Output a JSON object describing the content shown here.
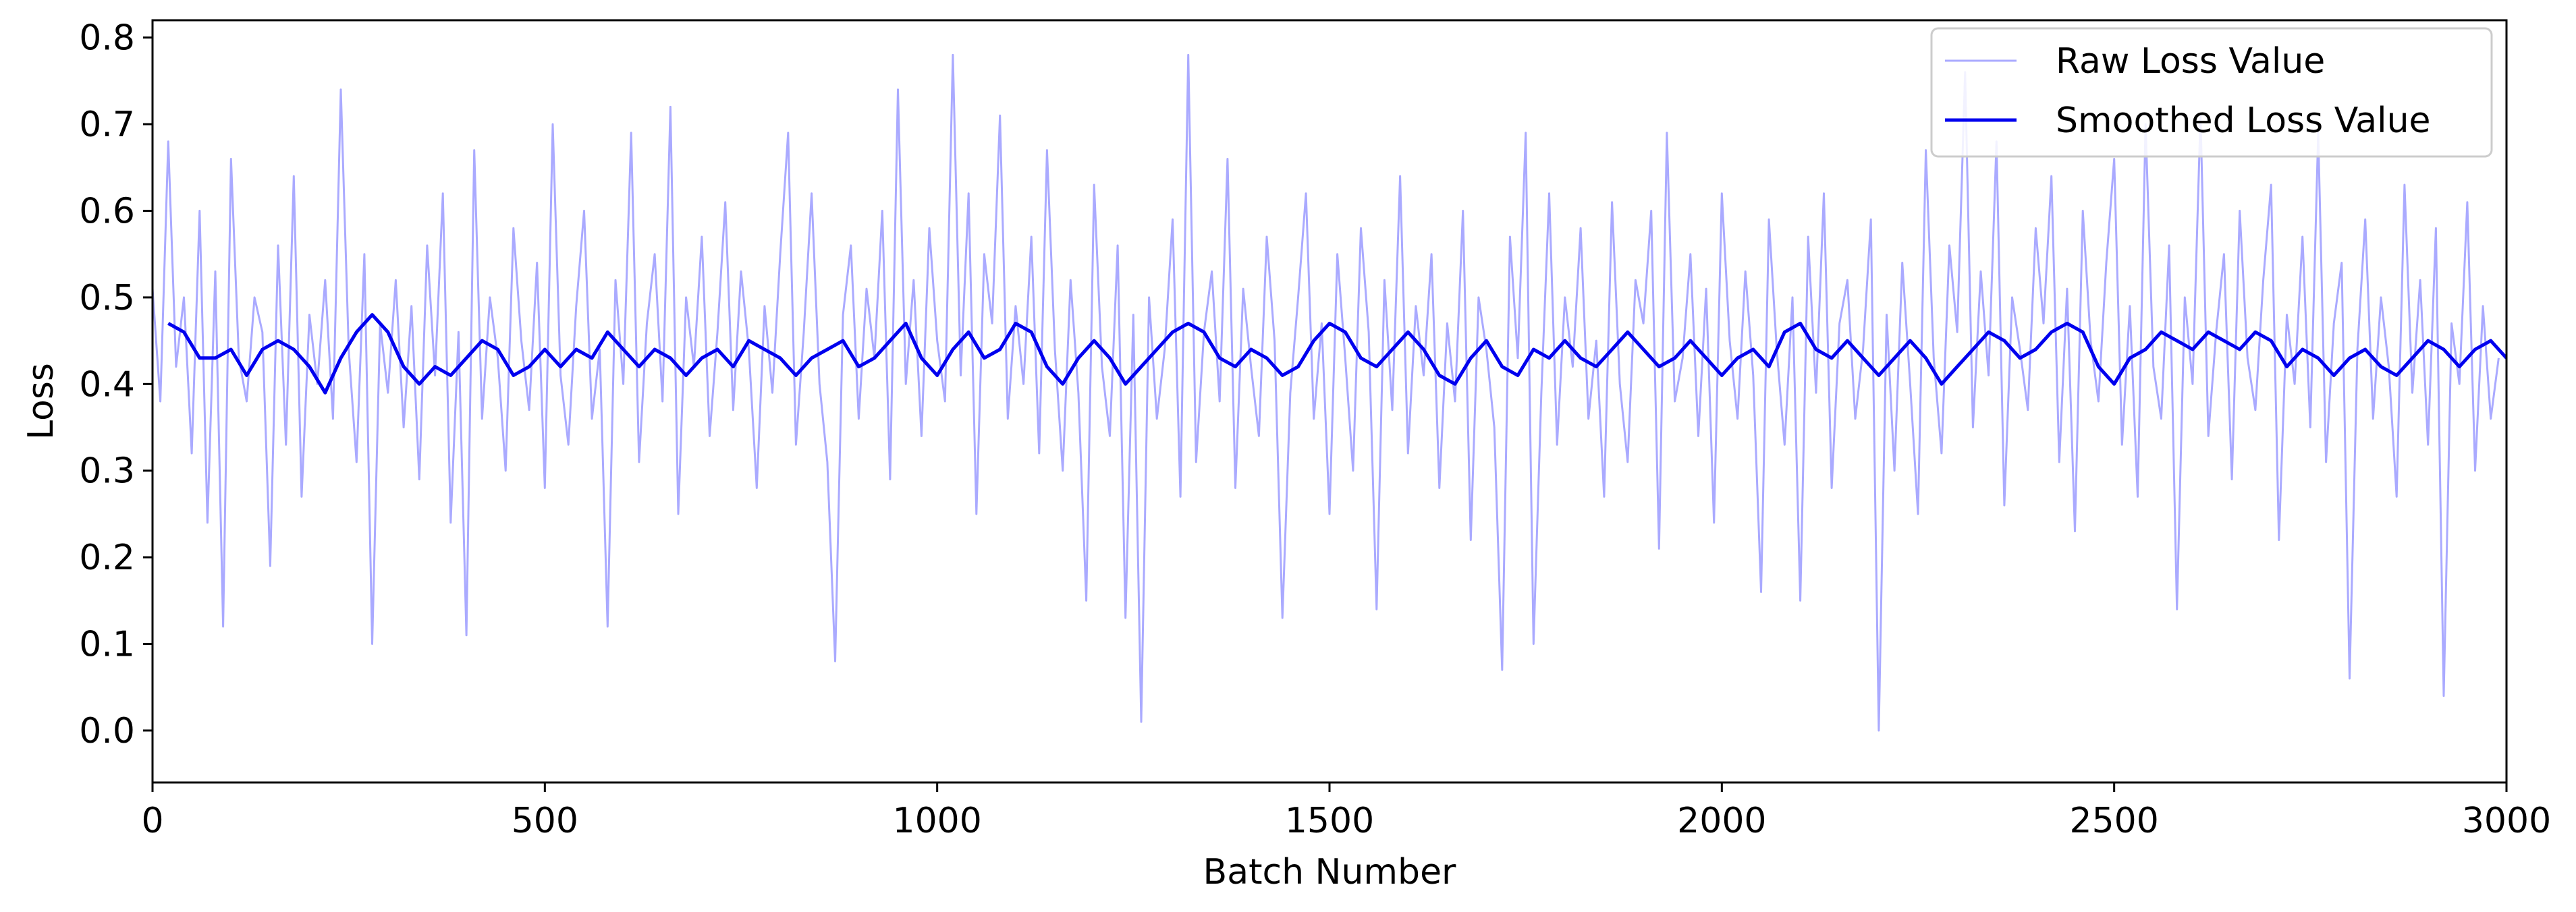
{
  "chart_data": {
    "type": "line",
    "title": "",
    "xlabel": "Batch Number",
    "ylabel": "Loss",
    "xlim": [
      0,
      3000
    ],
    "ylim": [
      -0.06,
      0.82
    ],
    "x_ticks": [
      0,
      500,
      1000,
      1500,
      2000,
      2500,
      3000
    ],
    "x_tick_labels": [
      "0",
      "500",
      "1000",
      "1500",
      "2000",
      "2500",
      "3000"
    ],
    "y_ticks": [
      0.0,
      0.1,
      0.2,
      0.3,
      0.4,
      0.5,
      0.6,
      0.7,
      0.8
    ],
    "y_tick_labels": [
      "0.0",
      "0.1",
      "0.2",
      "0.3",
      "0.4",
      "0.5",
      "0.6",
      "0.7",
      "0.8"
    ],
    "grid": false,
    "legend": {
      "placement": "top-right",
      "entries": [
        "Raw Loss Value",
        "Smoothed Loss Value"
      ]
    },
    "series": [
      {
        "name": "Raw Loss Value",
        "color": "#aaaaff",
        "x_start": 0,
        "x_step": 10,
        "values": [
          0.51,
          0.38,
          0.68,
          0.42,
          0.5,
          0.32,
          0.6,
          0.24,
          0.53,
          0.12,
          0.66,
          0.43,
          0.38,
          0.5,
          0.46,
          0.19,
          0.56,
          0.33,
          0.64,
          0.27,
          0.48,
          0.4,
          0.52,
          0.36,
          0.74,
          0.44,
          0.31,
          0.55,
          0.1,
          0.47,
          0.39,
          0.52,
          0.35,
          0.49,
          0.29,
          0.56,
          0.41,
          0.62,
          0.24,
          0.46,
          0.11,
          0.67,
          0.36,
          0.5,
          0.43,
          0.3,
          0.58,
          0.45,
          0.37,
          0.54,
          0.28,
          0.7,
          0.41,
          0.33,
          0.49,
          0.6,
          0.36,
          0.44,
          0.12,
          0.52,
          0.4,
          0.69,
          0.31,
          0.47,
          0.55,
          0.38,
          0.72,
          0.25,
          0.5,
          0.42,
          0.57,
          0.34,
          0.46,
          0.61,
          0.37,
          0.53,
          0.44,
          0.28,
          0.49,
          0.39,
          0.55,
          0.69,
          0.33,
          0.46,
          0.62,
          0.4,
          0.31,
          0.08,
          0.48,
          0.56,
          0.36,
          0.51,
          0.43,
          0.6,
          0.29,
          0.74,
          0.4,
          0.52,
          0.34,
          0.58,
          0.45,
          0.38,
          0.78,
          0.41,
          0.62,
          0.25,
          0.55,
          0.47,
          0.71,
          0.36,
          0.49,
          0.4,
          0.57,
          0.32,
          0.67,
          0.44,
          0.3,
          0.52,
          0.39,
          0.15,
          0.63,
          0.42,
          0.34,
          0.56,
          0.13,
          0.48,
          0.01,
          0.5,
          0.36,
          0.44,
          0.59,
          0.27,
          0.78,
          0.31,
          0.46,
          0.53,
          0.38,
          0.66,
          0.28,
          0.51,
          0.42,
          0.34,
          0.57,
          0.45,
          0.13,
          0.39,
          0.5,
          0.62,
          0.36,
          0.47,
          0.25,
          0.55,
          0.43,
          0.3,
          0.58,
          0.46,
          0.14,
          0.52,
          0.37,
          0.64,
          0.32,
          0.49,
          0.41,
          0.55,
          0.28,
          0.47,
          0.38,
          0.6,
          0.22,
          0.5,
          0.44,
          0.35,
          0.07,
          0.57,
          0.43,
          0.69,
          0.1,
          0.39,
          0.62,
          0.33,
          0.5,
          0.42,
          0.58,
          0.36,
          0.45,
          0.27,
          0.61,
          0.4,
          0.31,
          0.52,
          0.47,
          0.6,
          0.21,
          0.69,
          0.38,
          0.43,
          0.55,
          0.34,
          0.51,
          0.24,
          0.62,
          0.45,
          0.36,
          0.53,
          0.41,
          0.16,
          0.59,
          0.44,
          0.33,
          0.5,
          0.15,
          0.57,
          0.39,
          0.62,
          0.28,
          0.47,
          0.52,
          0.36,
          0.44,
          0.59,
          0.0,
          0.48,
          0.3,
          0.54,
          0.4,
          0.25,
          0.67,
          0.43,
          0.32,
          0.56,
          0.46,
          0.76,
          0.35,
          0.53,
          0.41,
          0.68,
          0.26,
          0.5,
          0.44,
          0.37,
          0.58,
          0.47,
          0.64,
          0.31,
          0.51,
          0.23,
          0.6,
          0.45,
          0.38,
          0.54,
          0.66,
          0.33,
          0.49,
          0.27,
          0.7,
          0.42,
          0.36,
          0.56,
          0.14,
          0.5,
          0.4,
          0.71,
          0.34,
          0.46,
          0.55,
          0.29,
          0.6,
          0.43,
          0.37,
          0.52,
          0.63,
          0.22,
          0.48,
          0.4,
          0.57,
          0.35,
          0.69,
          0.31,
          0.47,
          0.54,
          0.06,
          0.44,
          0.59,
          0.36,
          0.5,
          0.42,
          0.27,
          0.63,
          0.39,
          0.52,
          0.33,
          0.58,
          0.04,
          0.47,
          0.4,
          0.61,
          0.3,
          0.49,
          0.36,
          0.43
        ]
      },
      {
        "name": "Smoothed Loss Value",
        "color": "#0000ee",
        "x": [
          20,
          40,
          60,
          80,
          100,
          120,
          140,
          160,
          180,
          200,
          220,
          240,
          260,
          280,
          300,
          320,
          340,
          360,
          380,
          400,
          420,
          440,
          460,
          480,
          500,
          520,
          540,
          560,
          580,
          600,
          620,
          640,
          660,
          680,
          700,
          720,
          740,
          760,
          780,
          800,
          820,
          840,
          860,
          880,
          900,
          920,
          940,
          960,
          980,
          1000,
          1020,
          1040,
          1060,
          1080,
          1100,
          1120,
          1140,
          1160,
          1180,
          1200,
          1220,
          1240,
          1260,
          1280,
          1300,
          1320,
          1340,
          1360,
          1380,
          1400,
          1420,
          1440,
          1460,
          1480,
          1500,
          1520,
          1540,
          1560,
          1580,
          1600,
          1620,
          1640,
          1660,
          1680,
          1700,
          1720,
          1740,
          1760,
          1780,
          1800,
          1820,
          1840,
          1860,
          1880,
          1900,
          1920,
          1940,
          1960,
          1980,
          2000,
          2020,
          2040,
          2060,
          2080,
          2100,
          2120,
          2140,
          2160,
          2180,
          2200,
          2220,
          2240,
          2260,
          2280,
          2300,
          2320,
          2340,
          2360,
          2380,
          2400,
          2420,
          2440,
          2460,
          2480,
          2500,
          2520,
          2540,
          2560,
          2580,
          2600,
          2620,
          2640,
          2660,
          2680,
          2700,
          2720,
          2740,
          2760,
          2780,
          2800,
          2820,
          2840,
          2860,
          2880,
          2900,
          2920,
          2940,
          2960,
          2980,
          3000
        ],
        "values": [
          0.47,
          0.46,
          0.43,
          0.43,
          0.44,
          0.41,
          0.44,
          0.45,
          0.44,
          0.42,
          0.39,
          0.43,
          0.46,
          0.48,
          0.46,
          0.42,
          0.4,
          0.42,
          0.41,
          0.43,
          0.45,
          0.44,
          0.41,
          0.42,
          0.44,
          0.42,
          0.44,
          0.43,
          0.46,
          0.44,
          0.42,
          0.44,
          0.43,
          0.41,
          0.43,
          0.44,
          0.42,
          0.45,
          0.44,
          0.43,
          0.41,
          0.43,
          0.44,
          0.45,
          0.42,
          0.43,
          0.45,
          0.47,
          0.43,
          0.41,
          0.44,
          0.46,
          0.43,
          0.44,
          0.47,
          0.46,
          0.42,
          0.4,
          0.43,
          0.45,
          0.43,
          0.4,
          0.42,
          0.44,
          0.46,
          0.47,
          0.46,
          0.43,
          0.42,
          0.44,
          0.43,
          0.41,
          0.42,
          0.45,
          0.47,
          0.46,
          0.43,
          0.42,
          0.44,
          0.46,
          0.44,
          0.41,
          0.4,
          0.43,
          0.45,
          0.42,
          0.41,
          0.44,
          0.43,
          0.45,
          0.43,
          0.42,
          0.44,
          0.46,
          0.44,
          0.42,
          0.43,
          0.45,
          0.43,
          0.41,
          0.43,
          0.44,
          0.42,
          0.46,
          0.47,
          0.44,
          0.43,
          0.45,
          0.43,
          0.41,
          0.43,
          0.45,
          0.43,
          0.4,
          0.42,
          0.44,
          0.46,
          0.45,
          0.43,
          0.44,
          0.46,
          0.47,
          0.46,
          0.42,
          0.4,
          0.43,
          0.44,
          0.46,
          0.45,
          0.44,
          0.46,
          0.45,
          0.44,
          0.46,
          0.45,
          0.42,
          0.44,
          0.43,
          0.41,
          0.43,
          0.44,
          0.42,
          0.41,
          0.43,
          0.45,
          0.44,
          0.42,
          0.44,
          0.45,
          0.43
        ]
      }
    ]
  }
}
